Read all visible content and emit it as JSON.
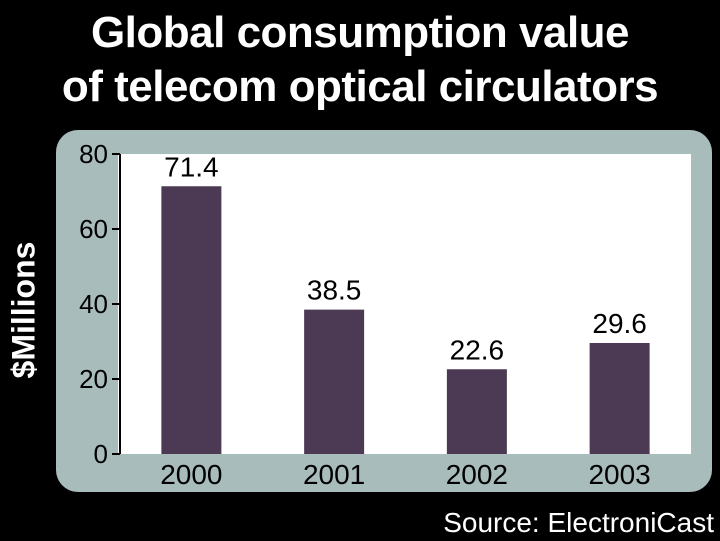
{
  "chart_data": {
    "type": "bar",
    "title_lines": [
      "Global consumption value",
      "of telecom optical circulators"
    ],
    "ylabel": "$Millions",
    "xlabel": "",
    "source": "Source: ElectroniCast",
    "categories": [
      "2000",
      "2001",
      "2002",
      "2003"
    ],
    "values": [
      71.4,
      38.5,
      22.6,
      29.6
    ],
    "value_labels": [
      "71.4",
      "38.5",
      "22.6",
      "29.6"
    ],
    "ylim": [
      0,
      80
    ],
    "yticks": [
      0,
      20,
      40,
      60,
      80
    ],
    "ytick_labels": [
      "0",
      "20",
      "40",
      "60",
      "80"
    ],
    "grid": false,
    "legend": "none",
    "colors": {
      "background": "#000000",
      "frame": "#a9bcbc",
      "plot": "#ffffff",
      "bar": "#4c3a55",
      "text": "#000000",
      "title_text": "#ffffff"
    }
  }
}
